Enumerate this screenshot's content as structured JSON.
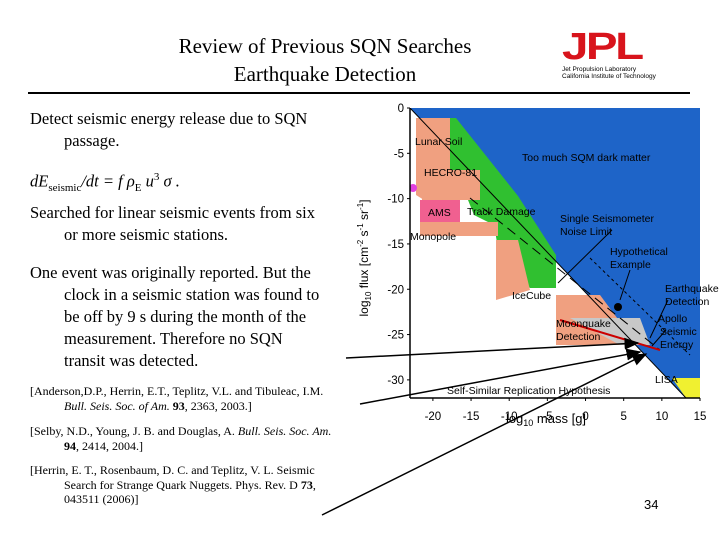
{
  "title": {
    "line1": "Review of Previous SQN Searches",
    "line2": "Earthquake Detection"
  },
  "logo": {
    "mark": "JPL",
    "line1": "Jet Propulsion Laboratory",
    "line2": "California Institute of Technology"
  },
  "body": {
    "p1_a": "Detect seismic energy release due to SQN",
    "p1_b": "passage.",
    "formula_lead": "dE",
    "formula_sub": "seismic",
    "formula_mid": "/dt = f ",
    "formula_rho": "ρ",
    "formula_rho_sub": "E",
    "formula_u": " u",
    "formula_u_sup": "3",
    "formula_sigma": " σ .",
    "p2_a": "Searched for linear seismic events from six",
    "p2_b": "or more seismic stations.",
    "p3_a": "One event was originally reported.  But the",
    "p3_b": "clock in a seismic station was found to",
    "p3_c": "be off by 9 s during the month of the",
    "p3_d": "measurement.  Therefore no SQN",
    "p3_e": "transit was detected."
  },
  "references": {
    "r1_a": "[Anderson,D.P., Herrin, E.T., Teplitz, V.L. and Tibuleac, I.M.",
    "r1_b_italic": "Bull. Seis. Soc. of Am.",
    "r1_b_bold": " 93",
    "r1_b_rest": ", 2363, 2003.]",
    "r2_a": "[Selby, N.D., Young, J. B. and Douglas, A. ",
    "r2_a_italic": "Bull. Seis. Soc. Am.",
    "r2_b_bold": "94",
    "r2_b_rest": ", 2414, 2004.]",
    "r3_a": "[Herrin, E. T., Rosenbaum, D. C. and Teplitz, V. L. Seismic",
    "r3_b_pre": "Search for Strange Quark Nuggets. Phys. Rev. D ",
    "r3_b_bold": "73",
    "r3_b_post": ",",
    "r3_c": "043511 (2006)]"
  },
  "page_number": "34",
  "chart_data": {
    "type": "area",
    "xlabel": "log",
    "xlabel_sub": "10",
    "xlabel_rest": " mass [g]",
    "ylabel": "log",
    "ylabel_sub": "10",
    "ylabel_rest": " flux [cm",
    "ylabel_u1": "-2",
    "ylabel_u2": " s",
    "ylabel_u3": "-1",
    "ylabel_u4": " sr",
    "ylabel_u5": "-1",
    "ylabel_end": "]",
    "xlim": [
      -23,
      15
    ],
    "ylim": [
      -32,
      0
    ],
    "x_ticks": [
      -20,
      -15,
      -10,
      -5,
      0,
      5,
      10,
      15
    ],
    "y_ticks": [
      0,
      -5,
      -10,
      -15,
      -20,
      -25,
      -30
    ],
    "regions": [
      {
        "name": "Too much SQM dark matter",
        "color": "#1e64c8"
      },
      {
        "name": "Lunar Soil",
        "color": "#f0a080"
      },
      {
        "name": "HECRO-81",
        "color": "#f0a080"
      },
      {
        "name": "AMS",
        "color": "#f06090"
      },
      {
        "name": "Track Damage",
        "color": "#30c030"
      },
      {
        "name": "Monopole",
        "color": "#f0a080"
      },
      {
        "name": "IceCube",
        "color": "#f0a080"
      },
      {
        "name": "Moonquake Detection",
        "color": "#f0a080"
      },
      {
        "name": "LISA",
        "color": "#f0f030"
      }
    ],
    "annotations": {
      "single_seismometer": "Single Seismometer",
      "single_seismometer_2": "Noise Limit",
      "hypothetical": "Hypothetical",
      "hypothetical_2": "Example",
      "earthquake": "Earthquake",
      "earthquake_2": "Detection",
      "apollo": "Apollo",
      "apollo_2": "Seismic",
      "apollo_3": "Energy",
      "self_similar": "Self-Similar Replication Hypothesis",
      "moonquake": "Moonquake",
      "moonquake_2": "Detection"
    },
    "hypothetical_point": {
      "x": 4,
      "y": -23
    }
  }
}
